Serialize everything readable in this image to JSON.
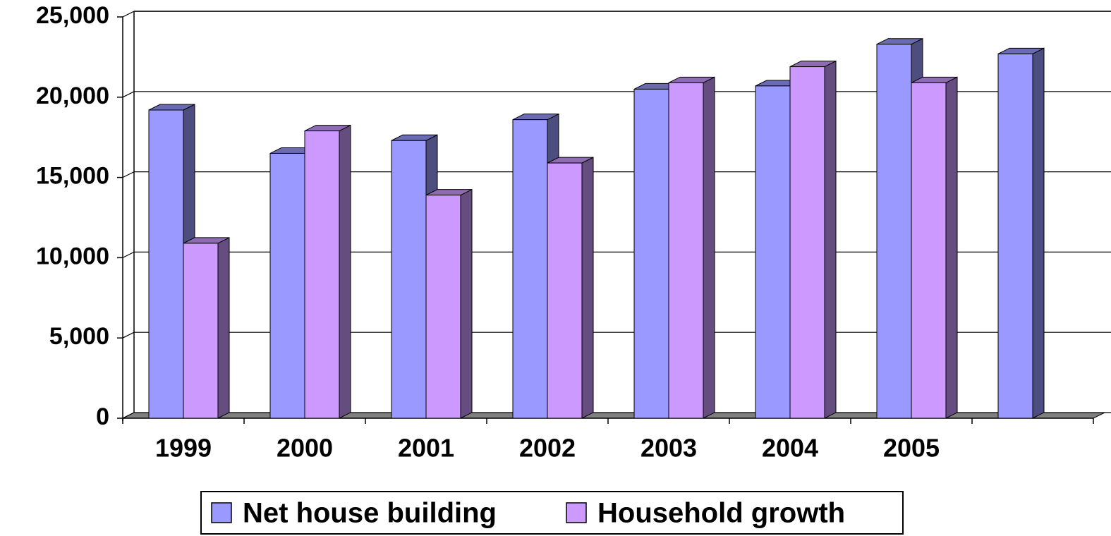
{
  "chart_data": {
    "type": "bar3d",
    "categories": [
      "1999",
      "2000",
      "2001",
      "2002",
      "2003",
      "2004",
      "2005",
      null
    ],
    "series": [
      {
        "name": "Net house building",
        "color": "#9999ff",
        "side_color": "#4d4d80",
        "top_color": "#6b6bb3",
        "values": [
          19200,
          16500,
          17300,
          18600,
          20500,
          20700,
          23300,
          22700
        ]
      },
      {
        "name": "Household growth",
        "color": "#cc99ff",
        "side_color": "#664d80",
        "top_color": "#8f6bb3",
        "values": [
          10900,
          17900,
          13900,
          15900,
          20900,
          21900,
          20900,
          null
        ]
      }
    ],
    "ylim": [
      0,
      25000
    ],
    "yticks": [
      0,
      {
        "value": 5000,
        "label": "5,000"
      },
      {
        "value": 10000,
        "label": "10,000"
      },
      {
        "value": 15000,
        "label": "15,000"
      },
      {
        "value": 20000,
        "label": "20,000"
      },
      {
        "value": 25000,
        "label": "25,000"
      }
    ],
    "grid": true,
    "legend": "bottom"
  }
}
